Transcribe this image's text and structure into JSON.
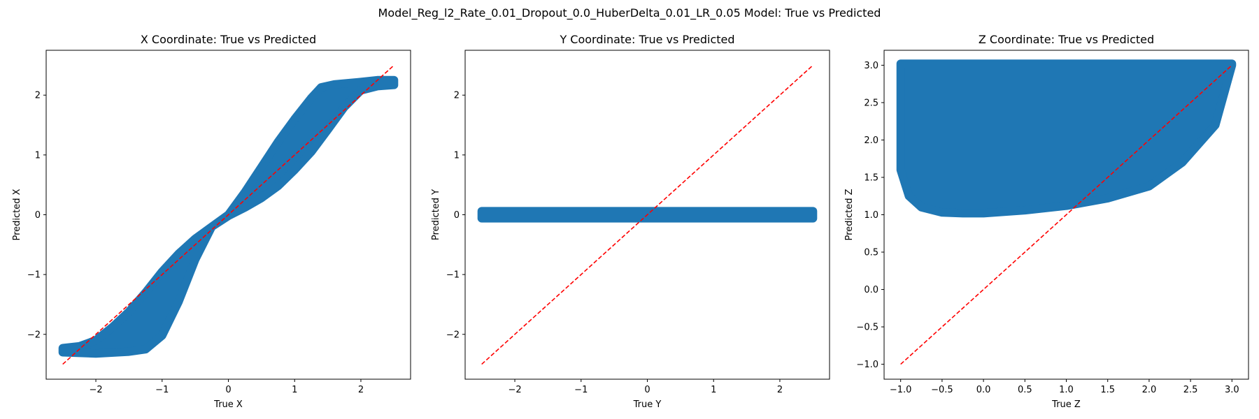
{
  "suptitle": "Model_Reg_l2_Rate_0.01_Dropout_0.0_HuberDelta_0.01_LR_0.05 Model: True vs Predicted",
  "colors": {
    "points": "#1f77b4",
    "identity_line": "#ff0000"
  },
  "chart_data": [
    {
      "type": "scatter",
      "title": "X Coordinate: True vs Predicted",
      "xlabel": "True X",
      "ylabel": "Predicted X",
      "xlim": [
        -2.75,
        2.75
      ],
      "ylim": [
        -2.75,
        2.75
      ],
      "xticks": [
        -2,
        -1,
        0,
        1,
        2
      ],
      "yticks": [
        -2,
        -1,
        0,
        1,
        2
      ],
      "tick_labels_x": [
        "−2",
        "−1",
        "0",
        "1",
        "2"
      ],
      "tick_labels_y": [
        "−2",
        "−1",
        "0",
        "1",
        "2"
      ],
      "identity_line": [
        [
          -2.5,
          -2.5
        ],
        [
          2.5,
          2.5
        ]
      ],
      "band_upper": [
        [
          -2.5,
          -2.23
        ],
        [
          -2.25,
          -2.2
        ],
        [
          -2.0,
          -2.1
        ],
        [
          -1.75,
          -1.88
        ],
        [
          -1.5,
          -1.62
        ],
        [
          -1.25,
          -1.3
        ],
        [
          -1.0,
          -0.95
        ],
        [
          -0.75,
          -0.65
        ],
        [
          -0.5,
          -0.4
        ],
        [
          -0.25,
          -0.2
        ],
        [
          0.0,
          0.0
        ],
        [
          0.25,
          0.38
        ],
        [
          0.5,
          0.8
        ],
        [
          0.75,
          1.22
        ],
        [
          1.0,
          1.6
        ],
        [
          1.25,
          1.95
        ],
        [
          1.4,
          2.13
        ],
        [
          1.6,
          2.18
        ],
        [
          2.0,
          2.22
        ],
        [
          2.25,
          2.25
        ],
        [
          2.5,
          2.25
        ]
      ],
      "band_lower": [
        [
          2.5,
          2.17
        ],
        [
          2.25,
          2.15
        ],
        [
          2.0,
          2.08
        ],
        [
          1.75,
          1.8
        ],
        [
          1.5,
          1.42
        ],
        [
          1.25,
          1.05
        ],
        [
          1.0,
          0.75
        ],
        [
          0.75,
          0.48
        ],
        [
          0.5,
          0.28
        ],
        [
          0.25,
          0.12
        ],
        [
          0.0,
          -0.02
        ],
        [
          -0.25,
          -0.2
        ],
        [
          -0.5,
          -0.75
        ],
        [
          -0.75,
          -1.45
        ],
        [
          -1.0,
          -2.02
        ],
        [
          -1.25,
          -2.25
        ],
        [
          -1.5,
          -2.29
        ],
        [
          -2.0,
          -2.32
        ],
        [
          -2.5,
          -2.3
        ]
      ]
    },
    {
      "type": "scatter",
      "title": "Y Coordinate: True vs Predicted",
      "xlabel": "True Y",
      "ylabel": "Predicted Y",
      "xlim": [
        -2.75,
        2.75
      ],
      "ylim": [
        -2.75,
        2.75
      ],
      "xticks": [
        -2,
        -1,
        0,
        1,
        2
      ],
      "yticks": [
        -2,
        -1,
        0,
        1,
        2
      ],
      "tick_labels_x": [
        "−2",
        "−1",
        "0",
        "1",
        "2"
      ],
      "tick_labels_y": [
        "−2",
        "−1",
        "0",
        "1",
        "2"
      ],
      "identity_line": [
        [
          -2.5,
          -2.5
        ],
        [
          2.5,
          2.5
        ]
      ],
      "band_upper": [
        [
          -2.5,
          0.06
        ],
        [
          2.5,
          0.06
        ]
      ],
      "band_lower": [
        [
          2.5,
          -0.06
        ],
        [
          -2.5,
          -0.06
        ]
      ]
    },
    {
      "type": "scatter",
      "title": "Z Coordinate: True vs Predicted",
      "xlabel": "True Z",
      "ylabel": "Predicted Z",
      "xlim": [
        -1.2,
        3.2
      ],
      "ylim": [
        -1.2,
        3.2
      ],
      "xticks": [
        -1.0,
        -0.5,
        0.0,
        0.5,
        1.0,
        1.5,
        2.0,
        2.5,
        3.0
      ],
      "yticks": [
        -1.0,
        -0.5,
        0.0,
        0.5,
        1.0,
        1.5,
        2.0,
        2.5,
        3.0
      ],
      "tick_labels_x": [
        "−1.0",
        "−0.5",
        "0.0",
        "0.5",
        "1.0",
        "1.5",
        "2.0",
        "2.5",
        "3.0"
      ],
      "tick_labels_y": [
        "−1.0",
        "−0.5",
        "0.0",
        "0.5",
        "1.0",
        "1.5",
        "2.0",
        "2.5",
        "3.0"
      ],
      "identity_line": [
        [
          -1.0,
          -1.0
        ],
        [
          3.0,
          3.0
        ]
      ],
      "band_upper": [
        [
          -1.0,
          3.02
        ],
        [
          3.0,
          3.02
        ]
      ],
      "band_lower": [
        [
          3.0,
          3.0
        ],
        [
          2.8,
          2.2
        ],
        [
          2.4,
          1.7
        ],
        [
          2.0,
          1.38
        ],
        [
          1.5,
          1.22
        ],
        [
          1.0,
          1.12
        ],
        [
          0.5,
          1.06
        ],
        [
          0.0,
          1.02
        ],
        [
          -0.25,
          1.02
        ],
        [
          -0.5,
          1.03
        ],
        [
          -0.75,
          1.1
        ],
        [
          -0.9,
          1.25
        ],
        [
          -1.0,
          1.6
        ],
        [
          -1.0,
          3.02
        ]
      ]
    }
  ]
}
